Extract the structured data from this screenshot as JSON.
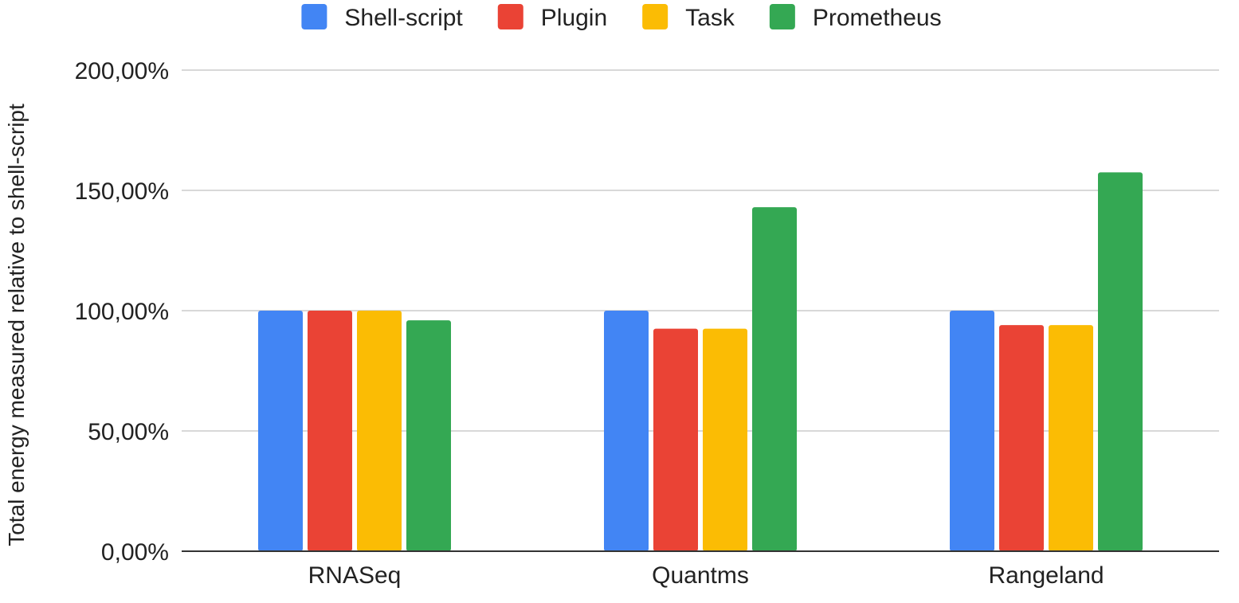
{
  "chart_data": {
    "type": "bar",
    "title": "",
    "xlabel": "",
    "ylabel": "Total energy measured relative to shell-script",
    "categories": [
      "RNASeq",
      "Quantms",
      "Rangeland"
    ],
    "series": [
      {
        "name": "Shell-script",
        "color": "#4285f4",
        "values": [
          100,
          100,
          100
        ]
      },
      {
        "name": "Plugin",
        "color": "#ea4335",
        "values": [
          100,
          92.5,
          94
        ]
      },
      {
        "name": "Task",
        "color": "#fbbc04",
        "values": [
          100,
          92.5,
          94
        ]
      },
      {
        "name": "Prometheus",
        "color": "#34a853",
        "values": [
          96,
          143,
          157.5
        ]
      }
    ],
    "ylim": [
      0,
      200
    ],
    "yticks": [
      {
        "value": 0,
        "label": "0,00%"
      },
      {
        "value": 50,
        "label": "50,00%"
      },
      {
        "value": 100,
        "label": "100,00%"
      },
      {
        "value": 150,
        "label": "150,00%"
      },
      {
        "value": 200,
        "label": "200,00%"
      }
    ],
    "grid": true,
    "legend_position": "top-center"
  }
}
